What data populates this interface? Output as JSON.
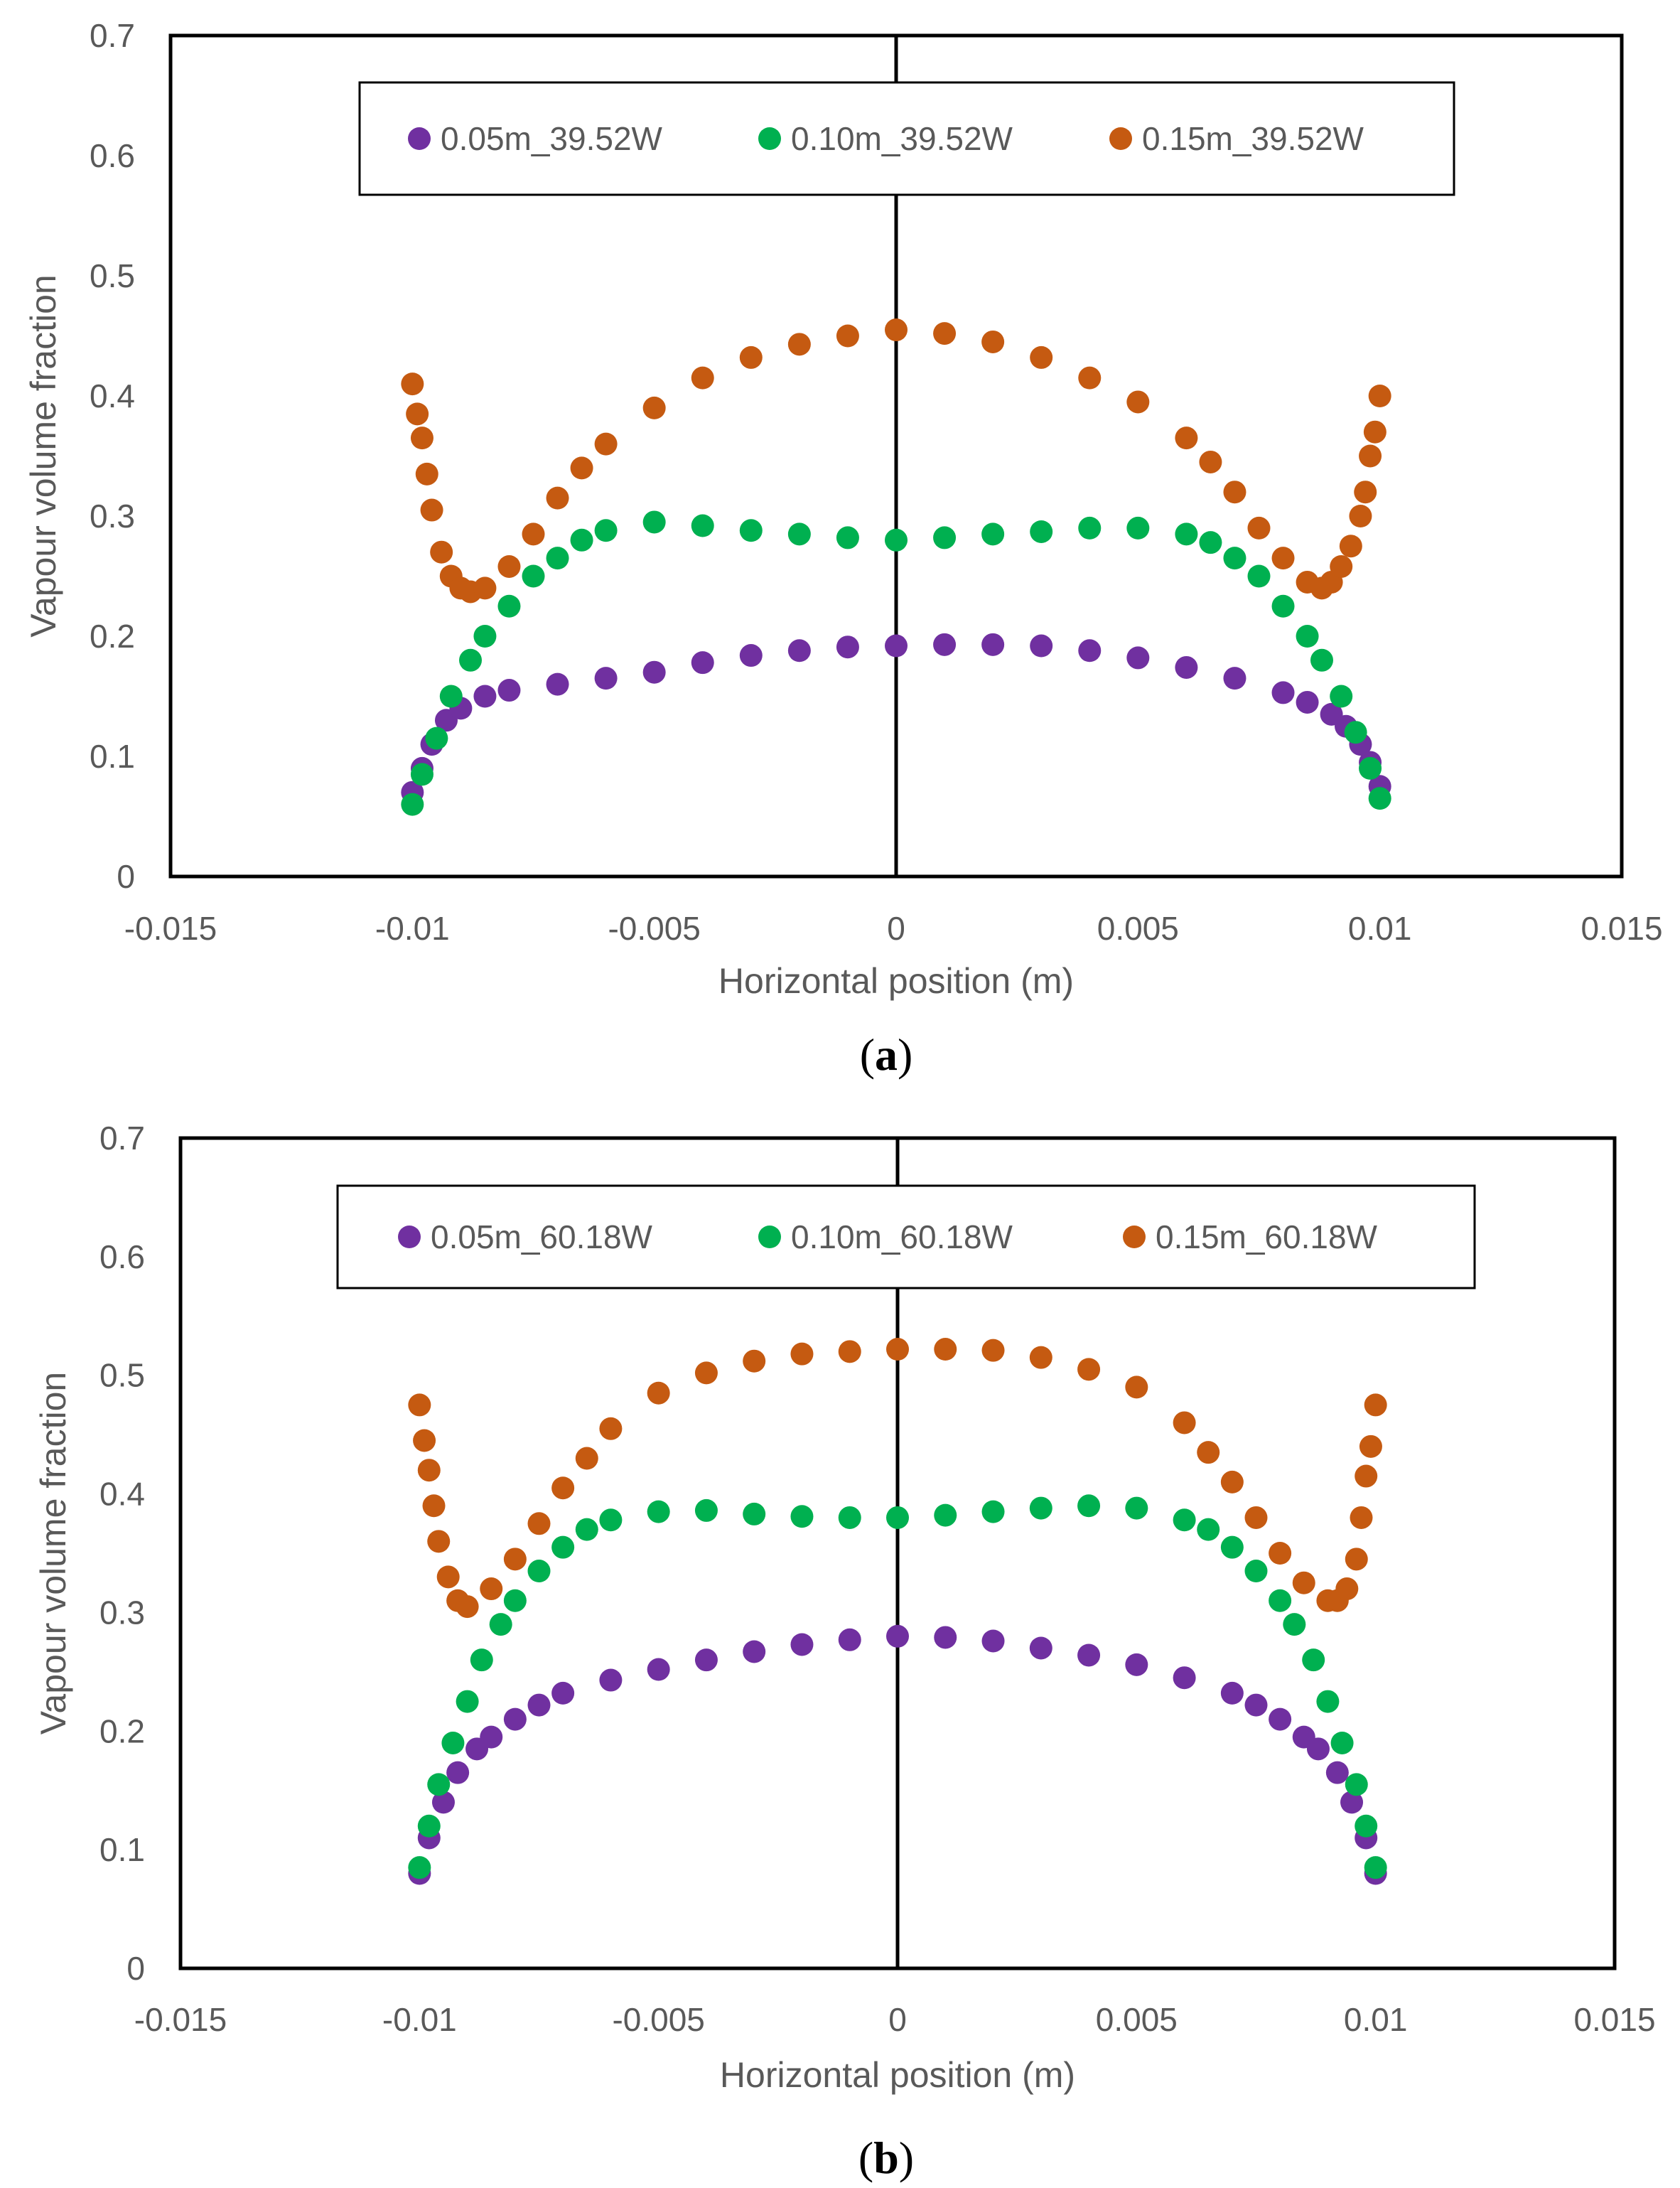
{
  "chart_data": [
    {
      "type": "scatter",
      "caption": {
        "open": "(",
        "letter": "a",
        "close": ")"
      },
      "xlabel": "Horizontal position (m)",
      "ylabel": "Vapour volume fraction",
      "xlim": [
        -0.015,
        0.015
      ],
      "ylim": [
        0,
        0.7
      ],
      "x_ticks": [
        "-0.015",
        "-0.01",
        "-0.005",
        "0",
        "0.005",
        "0.01",
        "0.015"
      ],
      "y_ticks": [
        "0",
        "0.1",
        "0.2",
        "0.3",
        "0.4",
        "0.5",
        "0.6",
        "0.7"
      ],
      "grid": false,
      "legend_position": "top-center",
      "series": [
        {
          "name": "0.05m_39.52W",
          "color": "#7030a0",
          "points": [
            [
              -0.01,
              0.07
            ],
            [
              -0.0098,
              0.09
            ],
            [
              -0.0096,
              0.11
            ],
            [
              -0.0093,
              0.13
            ],
            [
              -0.009,
              0.14
            ],
            [
              -0.0085,
              0.15
            ],
            [
              -0.008,
              0.155
            ],
            [
              -0.007,
              0.16
            ],
            [
              -0.006,
              0.165
            ],
            [
              -0.005,
              0.17
            ],
            [
              -0.004,
              0.178
            ],
            [
              -0.003,
              0.184
            ],
            [
              -0.002,
              0.188
            ],
            [
              -0.001,
              0.191
            ],
            [
              0,
              0.192
            ],
            [
              0.001,
              0.193
            ],
            [
              0.002,
              0.193
            ],
            [
              0.003,
              0.192
            ],
            [
              0.004,
              0.188
            ],
            [
              0.005,
              0.182
            ],
            [
              0.006,
              0.174
            ],
            [
              0.007,
              0.165
            ],
            [
              0.008,
              0.153
            ],
            [
              0.0085,
              0.145
            ],
            [
              0.009,
              0.135
            ],
            [
              0.0093,
              0.125
            ],
            [
              0.0096,
              0.11
            ],
            [
              0.0098,
              0.095
            ],
            [
              0.01,
              0.075
            ]
          ]
        },
        {
          "name": "0.10m_39.52W",
          "color": "#00b050",
          "points": [
            [
              -0.01,
              0.06
            ],
            [
              -0.0098,
              0.085
            ],
            [
              -0.0095,
              0.115
            ],
            [
              -0.0092,
              0.15
            ],
            [
              -0.0088,
              0.18
            ],
            [
              -0.0085,
              0.2
            ],
            [
              -0.008,
              0.225
            ],
            [
              -0.0075,
              0.25
            ],
            [
              -0.007,
              0.265
            ],
            [
              -0.0065,
              0.28
            ],
            [
              -0.006,
              0.288
            ],
            [
              -0.005,
              0.295
            ],
            [
              -0.004,
              0.292
            ],
            [
              -0.003,
              0.288
            ],
            [
              -0.002,
              0.285
            ],
            [
              -0.001,
              0.282
            ],
            [
              0,
              0.28
            ],
            [
              0.001,
              0.282
            ],
            [
              0.002,
              0.285
            ],
            [
              0.003,
              0.287
            ],
            [
              0.004,
              0.29
            ],
            [
              0.005,
              0.29
            ],
            [
              0.006,
              0.285
            ],
            [
              0.0065,
              0.278
            ],
            [
              0.007,
              0.265
            ],
            [
              0.0075,
              0.25
            ],
            [
              0.008,
              0.225
            ],
            [
              0.0085,
              0.2
            ],
            [
              0.0088,
              0.18
            ],
            [
              0.0092,
              0.15
            ],
            [
              0.0095,
              0.12
            ],
            [
              0.0098,
              0.09
            ],
            [
              0.01,
              0.065
            ]
          ]
        },
        {
          "name": "0.15m_39.52W",
          "color": "#c55a11",
          "points": [
            [
              -0.01,
              0.41
            ],
            [
              -0.0099,
              0.385
            ],
            [
              -0.0098,
              0.365
            ],
            [
              -0.0097,
              0.335
            ],
            [
              -0.0096,
              0.305
            ],
            [
              -0.0094,
              0.27
            ],
            [
              -0.0092,
              0.25
            ],
            [
              -0.009,
              0.24
            ],
            [
              -0.0088,
              0.237
            ],
            [
              -0.0085,
              0.24
            ],
            [
              -0.008,
              0.258
            ],
            [
              -0.0075,
              0.285
            ],
            [
              -0.007,
              0.315
            ],
            [
              -0.0065,
              0.34
            ],
            [
              -0.006,
              0.36
            ],
            [
              -0.005,
              0.39
            ],
            [
              -0.004,
              0.415
            ],
            [
              -0.003,
              0.432
            ],
            [
              -0.002,
              0.443
            ],
            [
              -0.001,
              0.45
            ],
            [
              0,
              0.455
            ],
            [
              0.001,
              0.452
            ],
            [
              0.002,
              0.445
            ],
            [
              0.003,
              0.432
            ],
            [
              0.004,
              0.415
            ],
            [
              0.005,
              0.395
            ],
            [
              0.006,
              0.365
            ],
            [
              0.0065,
              0.345
            ],
            [
              0.007,
              0.32
            ],
            [
              0.0075,
              0.29
            ],
            [
              0.008,
              0.265
            ],
            [
              0.0085,
              0.245
            ],
            [
              0.0088,
              0.24
            ],
            [
              0.009,
              0.245
            ],
            [
              0.0092,
              0.258
            ],
            [
              0.0094,
              0.275
            ],
            [
              0.0096,
              0.3
            ],
            [
              0.0097,
              0.32
            ],
            [
              0.0098,
              0.35
            ],
            [
              0.0099,
              0.37
            ],
            [
              0.01,
              0.4
            ]
          ]
        }
      ]
    },
    {
      "type": "scatter",
      "caption": {
        "open": "(",
        "letter": "b",
        "close": ")"
      },
      "xlabel": "Horizontal position (m)",
      "ylabel": "Vapour volume fraction",
      "xlim": [
        -0.015,
        0.015
      ],
      "ylim": [
        0,
        0.7
      ],
      "x_ticks": [
        "-0.015",
        "-0.01",
        "-0.005",
        "0",
        "0.005",
        "0.01",
        "0.015"
      ],
      "y_ticks": [
        "0",
        "0.1",
        "0.2",
        "0.3",
        "0.4",
        "0.5",
        "0.6",
        "0.7"
      ],
      "grid": false,
      "legend_position": "top-center",
      "series": [
        {
          "name": "0.05m_60.18W",
          "color": "#7030a0",
          "points": [
            [
              -0.01,
              0.08
            ],
            [
              -0.0098,
              0.11
            ],
            [
              -0.0095,
              0.14
            ],
            [
              -0.0092,
              0.165
            ],
            [
              -0.0088,
              0.185
            ],
            [
              -0.0085,
              0.195
            ],
            [
              -0.008,
              0.21
            ],
            [
              -0.0075,
              0.222
            ],
            [
              -0.007,
              0.232
            ],
            [
              -0.006,
              0.243
            ],
            [
              -0.005,
              0.252
            ],
            [
              -0.004,
              0.26
            ],
            [
              -0.003,
              0.267
            ],
            [
              -0.002,
              0.273
            ],
            [
              -0.001,
              0.277
            ],
            [
              0,
              0.28
            ],
            [
              0.001,
              0.279
            ],
            [
              0.002,
              0.276
            ],
            [
              0.003,
              0.27
            ],
            [
              0.004,
              0.264
            ],
            [
              0.005,
              0.256
            ],
            [
              0.006,
              0.245
            ],
            [
              0.007,
              0.232
            ],
            [
              0.0075,
              0.222
            ],
            [
              0.008,
              0.21
            ],
            [
              0.0085,
              0.195
            ],
            [
              0.0088,
              0.185
            ],
            [
              0.0092,
              0.165
            ],
            [
              0.0095,
              0.14
            ],
            [
              0.0098,
              0.11
            ],
            [
              0.01,
              0.08
            ]
          ]
        },
        {
          "name": "0.10m_60.18W",
          "color": "#00b050",
          "points": [
            [
              -0.01,
              0.085
            ],
            [
              -0.0098,
              0.12
            ],
            [
              -0.0096,
              0.155
            ],
            [
              -0.0093,
              0.19
            ],
            [
              -0.009,
              0.225
            ],
            [
              -0.0087,
              0.26
            ],
            [
              -0.0083,
              0.29
            ],
            [
              -0.008,
              0.31
            ],
            [
              -0.0075,
              0.335
            ],
            [
              -0.007,
              0.355
            ],
            [
              -0.0065,
              0.37
            ],
            [
              -0.006,
              0.378
            ],
            [
              -0.005,
              0.385
            ],
            [
              -0.004,
              0.386
            ],
            [
              -0.003,
              0.383
            ],
            [
              -0.002,
              0.381
            ],
            [
              -0.001,
              0.38
            ],
            [
              0,
              0.38
            ],
            [
              0.001,
              0.382
            ],
            [
              0.002,
              0.385
            ],
            [
              0.003,
              0.388
            ],
            [
              0.004,
              0.39
            ],
            [
              0.005,
              0.388
            ],
            [
              0.006,
              0.378
            ],
            [
              0.0065,
              0.37
            ],
            [
              0.007,
              0.355
            ],
            [
              0.0075,
              0.335
            ],
            [
              0.008,
              0.31
            ],
            [
              0.0083,
              0.29
            ],
            [
              0.0087,
              0.26
            ],
            [
              0.009,
              0.225
            ],
            [
              0.0093,
              0.19
            ],
            [
              0.0096,
              0.155
            ],
            [
              0.0098,
              0.12
            ],
            [
              0.01,
              0.085
            ]
          ]
        },
        {
          "name": "0.15m_60.18W",
          "color": "#c55a11",
          "points": [
            [
              -0.01,
              0.475
            ],
            [
              -0.0099,
              0.445
            ],
            [
              -0.0098,
              0.42
            ],
            [
              -0.0097,
              0.39
            ],
            [
              -0.0096,
              0.36
            ],
            [
              -0.0094,
              0.33
            ],
            [
              -0.0092,
              0.31
            ],
            [
              -0.009,
              0.305
            ],
            [
              -0.0085,
              0.32
            ],
            [
              -0.008,
              0.345
            ],
            [
              -0.0075,
              0.375
            ],
            [
              -0.007,
              0.405
            ],
            [
              -0.0065,
              0.43
            ],
            [
              -0.006,
              0.455
            ],
            [
              -0.005,
              0.485
            ],
            [
              -0.004,
              0.502
            ],
            [
              -0.003,
              0.512
            ],
            [
              -0.002,
              0.518
            ],
            [
              -0.001,
              0.52
            ],
            [
              0,
              0.522
            ],
            [
              0.001,
              0.522
            ],
            [
              0.002,
              0.521
            ],
            [
              0.003,
              0.515
            ],
            [
              0.004,
              0.505
            ],
            [
              0.005,
              0.49
            ],
            [
              0.006,
              0.46
            ],
            [
              0.0065,
              0.435
            ],
            [
              0.007,
              0.41
            ],
            [
              0.0075,
              0.38
            ],
            [
              0.008,
              0.35
            ],
            [
              0.0085,
              0.325
            ],
            [
              0.009,
              0.31
            ],
            [
              0.0092,
              0.31
            ],
            [
              0.0094,
              0.32
            ],
            [
              0.0096,
              0.345
            ],
            [
              0.0097,
              0.38
            ],
            [
              0.0098,
              0.415
            ],
            [
              0.0099,
              0.44
            ],
            [
              0.01,
              0.475
            ]
          ]
        }
      ]
    }
  ]
}
